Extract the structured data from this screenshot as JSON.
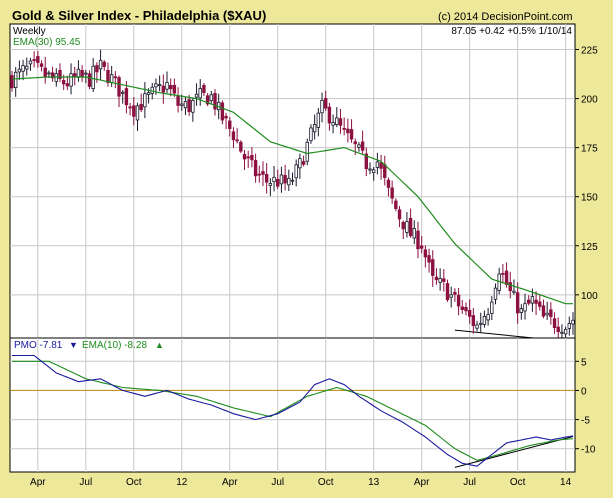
{
  "colors": {
    "background": "#EDE89A",
    "plot_bg": "#FFFFFF",
    "grid": "#C8C8C8",
    "up_candle": "#1A1A2E",
    "down_candle": "#8C1040",
    "ema_line": "#1E8C1E",
    "pmo_line": "#1A1A9E",
    "zero_line": "#B8860B",
    "text": "#000000",
    "indicator_text": "#1A1A9E"
  },
  "header": {
    "title": "Gold & Silver Index - Philadelphia ($XAU)",
    "copyright": "(c) 2014 DecisionPoint.com",
    "quote": "87.05 +0.42 +0.5% 1/10/14",
    "period": "Weekly",
    "ema_label": "EMA(30) 95.45"
  },
  "pmo_legend": {
    "pmo_label": "PMO -7.81",
    "ema_label": "EMA(10) -8.28"
  },
  "chart_data": [
    {
      "type": "candlestick",
      "title": "Gold & Silver Index - Philadelphia ($XAU)",
      "period": "Weekly",
      "y_axis_ticks": [
        100,
        125,
        150,
        175,
        200,
        225
      ],
      "ylim": [
        78,
        238
      ],
      "x_axis_ticks": [
        "Apr",
        "Jul",
        "Oct",
        "12",
        "Apr",
        "Jul",
        "Oct",
        "13",
        "Apr",
        "Jul",
        "Oct",
        "14"
      ],
      "x_tick_week_index": [
        7,
        20,
        33,
        46,
        59,
        72,
        85,
        98,
        111,
        124,
        137,
        150
      ],
      "price_path": [
        [
          0,
          210
        ],
        [
          3,
          214
        ],
        [
          6,
          216
        ],
        [
          9,
          212
        ],
        [
          12,
          209
        ],
        [
          15,
          208
        ],
        [
          18,
          211
        ],
        [
          21,
          210
        ],
        [
          24,
          216
        ],
        [
          27,
          210
        ],
        [
          30,
          202
        ],
        [
          33,
          195
        ],
        [
          36,
          199
        ],
        [
          39,
          204
        ],
        [
          42,
          207
        ],
        [
          45,
          197
        ],
        [
          48,
          196
        ],
        [
          51,
          201
        ],
        [
          54,
          201
        ],
        [
          57,
          190
        ],
        [
          60,
          182
        ],
        [
          63,
          170
        ],
        [
          66,
          162
        ],
        [
          69,
          158
        ],
        [
          72,
          158
        ],
        [
          75,
          156
        ],
        [
          78,
          166
        ],
        [
          81,
          181
        ],
        [
          84,
          195
        ],
        [
          87,
          190
        ],
        [
          90,
          182
        ],
        [
          93,
          175
        ],
        [
          96,
          167
        ],
        [
          99,
          168
        ],
        [
          102,
          152
        ],
        [
          105,
          140
        ],
        [
          108,
          131
        ],
        [
          111,
          126
        ],
        [
          114,
          107
        ],
        [
          117,
          104
        ],
        [
          120,
          97
        ],
        [
          123,
          90
        ],
        [
          126,
          84
        ],
        [
          129,
          93
        ],
        [
          132,
          114
        ],
        [
          135,
          101
        ],
        [
          138,
          91
        ],
        [
          141,
          97
        ],
        [
          144,
          88
        ],
        [
          147,
          86
        ],
        [
          150,
          84
        ],
        [
          152,
          88
        ]
      ],
      "last_close": 87.05,
      "overlay_ema": {
        "name": "EMA(30)",
        "value": 95.45,
        "path": [
          [
            0,
            210
          ],
          [
            10,
            211
          ],
          [
            20,
            211
          ],
          [
            30,
            207
          ],
          [
            40,
            203
          ],
          [
            50,
            200
          ],
          [
            60,
            193
          ],
          [
            70,
            178
          ],
          [
            80,
            172
          ],
          [
            90,
            175
          ],
          [
            100,
            168
          ],
          [
            110,
            150
          ],
          [
            120,
            126
          ],
          [
            130,
            108
          ],
          [
            140,
            102
          ],
          [
            150,
            95.5
          ],
          [
            152,
            95.5
          ]
        ]
      },
      "trendline": [
        [
          120,
          82
        ],
        [
          152,
          76
        ]
      ]
    },
    {
      "type": "line",
      "title": "PMO",
      "y_axis_ticks": [
        -10,
        -5,
        0,
        5
      ],
      "ylim": [
        -14,
        9
      ],
      "series": [
        {
          "name": "PMO",
          "value": -7.81,
          "points": [
            [
              0,
              6
            ],
            [
              6,
              6
            ],
            [
              12,
              3
            ],
            [
              18,
              1.5
            ],
            [
              24,
              2
            ],
            [
              30,
              0
            ],
            [
              36,
              -1
            ],
            [
              42,
              0
            ],
            [
              48,
              -1.5
            ],
            [
              54,
              -2.5
            ],
            [
              60,
              -4
            ],
            [
              66,
              -5
            ],
            [
              72,
              -4
            ],
            [
              78,
              -2
            ],
            [
              82,
              1
            ],
            [
              86,
              2
            ],
            [
              90,
              1
            ],
            [
              94,
              -1
            ],
            [
              100,
              -3.5
            ],
            [
              106,
              -5.5
            ],
            [
              112,
              -8
            ],
            [
              118,
              -11
            ],
            [
              122,
              -12.5
            ],
            [
              126,
              -13
            ],
            [
              130,
              -11
            ],
            [
              134,
              -9
            ],
            [
              138,
              -8.5
            ],
            [
              142,
              -8
            ],
            [
              146,
              -8.5
            ],
            [
              150,
              -8
            ],
            [
              152,
              -7.81
            ]
          ]
        },
        {
          "name": "EMA(10)",
          "value": -8.28,
          "points": [
            [
              0,
              5
            ],
            [
              10,
              5
            ],
            [
              20,
              2
            ],
            [
              30,
              0.5
            ],
            [
              40,
              0
            ],
            [
              50,
              -1
            ],
            [
              60,
              -3
            ],
            [
              70,
              -4.5
            ],
            [
              80,
              -1
            ],
            [
              88,
              0.5
            ],
            [
              96,
              -1
            ],
            [
              104,
              -3.5
            ],
            [
              112,
              -6
            ],
            [
              120,
              -10
            ],
            [
              126,
              -12
            ],
            [
              132,
              -11
            ],
            [
              140,
              -9.5
            ],
            [
              148,
              -8.5
            ],
            [
              152,
              -8.28
            ]
          ]
        }
      ],
      "trendline": [
        [
          120,
          -13.2
        ],
        [
          152,
          -7.9
        ]
      ]
    }
  ]
}
